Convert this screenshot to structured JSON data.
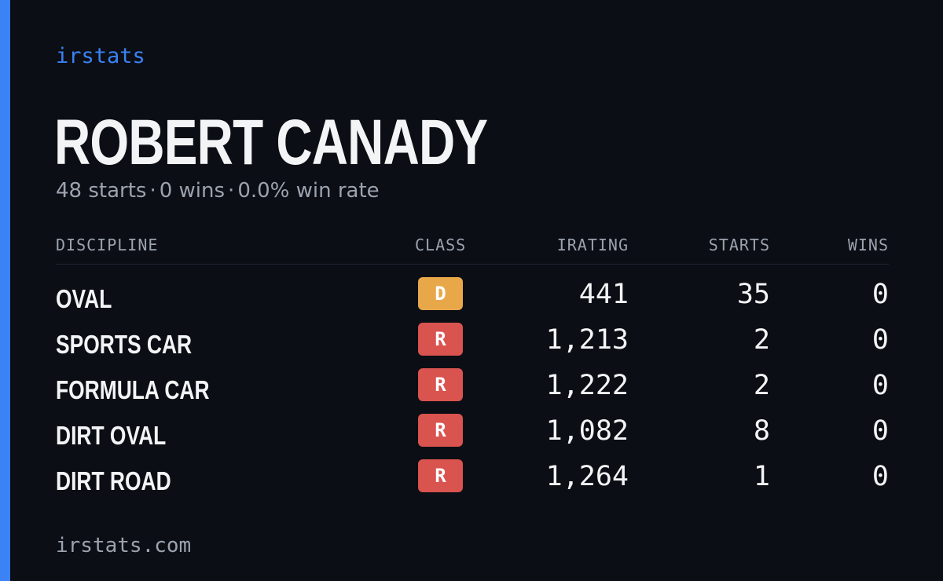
{
  "brand": "irstats",
  "player": {
    "name": "ROBERT CANADY",
    "starts_text": "48 starts",
    "wins_text": "0 wins",
    "win_rate_text": "0.0% win rate",
    "separator": "·"
  },
  "table": {
    "headers": {
      "discipline": "DISCIPLINE",
      "class": "CLASS",
      "irating": "IRATING",
      "starts": "STARTS",
      "wins": "WINS"
    },
    "rows": [
      {
        "discipline": "OVAL",
        "class": "D",
        "irating": "441",
        "starts": "35",
        "wins": "0"
      },
      {
        "discipline": "SPORTS CAR",
        "class": "R",
        "irating": "1,213",
        "starts": "2",
        "wins": "0"
      },
      {
        "discipline": "FORMULA CAR",
        "class": "R",
        "irating": "1,222",
        "starts": "2",
        "wins": "0"
      },
      {
        "discipline": "DIRT OVAL",
        "class": "R",
        "irating": "1,082",
        "starts": "8",
        "wins": "0"
      },
      {
        "discipline": "DIRT ROAD",
        "class": "R",
        "irating": "1,264",
        "starts": "1",
        "wins": "0"
      }
    ]
  },
  "footer": "irstats.com",
  "colors": {
    "background": "#0b0e14",
    "accent": "#3b82f6",
    "class_d": "#e8a84a",
    "class_r": "#d9534f"
  }
}
